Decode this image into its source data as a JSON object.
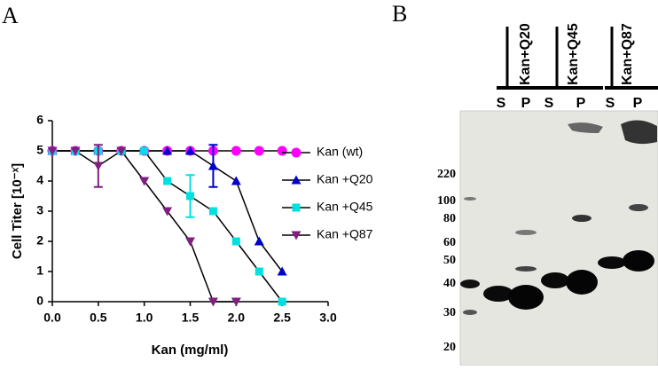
{
  "panel_labels": [
    "A",
    "B"
  ],
  "chart_data": {
    "type": "line",
    "x_label": "Kan (mg/ml)",
    "y_label": "Cell Titer [10⁻ˣ]",
    "xlim": [
      0,
      3
    ],
    "xticks": [
      {
        "value": 0,
        "label": "0.0"
      },
      {
        "value": 0.5,
        "label": "0.5"
      },
      {
        "value": 1,
        "label": "1.0"
      },
      {
        "value": 1.5,
        "label": "1.5"
      },
      {
        "value": 2,
        "label": "2.0"
      },
      {
        "value": 2.5,
        "label": "2.5"
      },
      {
        "value": 3,
        "label": "3.0"
      }
    ],
    "ylim": [
      0,
      6
    ],
    "yticks": [
      0,
      1,
      2,
      3,
      4,
      5,
      6
    ],
    "line_color": "#000000",
    "series": [
      {
        "name": "Kan (wt)",
        "color": "#ff00ff",
        "marker": "circle",
        "x": [
          0,
          0.25,
          0.5,
          0.75,
          1,
          1.25,
          1.5,
          1.75,
          2,
          2.25,
          2.5
        ],
        "values": [
          5,
          5,
          5,
          5,
          5,
          5,
          5,
          5,
          5,
          5,
          5
        ],
        "errors": [
          null,
          null,
          null,
          null,
          null,
          null,
          null,
          null,
          null,
          null,
          null
        ]
      },
      {
        "name": "Kan +Q20",
        "color": "#0000cc",
        "marker": "triangle-up",
        "x": [
          0,
          0.25,
          0.5,
          0.75,
          1,
          1.25,
          1.5,
          1.75,
          2,
          2.25,
          2.5
        ],
        "values": [
          5,
          5,
          5,
          5,
          5,
          5,
          5,
          4.5,
          4,
          2,
          1
        ],
        "errors": [
          null,
          null,
          null,
          null,
          null,
          null,
          null,
          0.7,
          null,
          null,
          null
        ]
      },
      {
        "name": "Kan +Q45",
        "color": "#00e0e0",
        "marker": "square",
        "x": [
          0,
          0.25,
          0.5,
          0.75,
          1,
          1.25,
          1.5,
          1.75,
          2,
          2.25,
          2.5
        ],
        "values": [
          5,
          5,
          5,
          5,
          5,
          4,
          3.5,
          3,
          2,
          1,
          0
        ],
        "errors": [
          null,
          null,
          null,
          null,
          null,
          null,
          0.7,
          null,
          null,
          null,
          null
        ]
      },
      {
        "name": "Kan +Q87",
        "color": "#7f1f7f",
        "marker": "triangle-down",
        "x": [
          0,
          0.25,
          0.5,
          0.75,
          1,
          1.25,
          1.5,
          1.75,
          2
        ],
        "values": [
          5,
          5,
          4.5,
          5,
          4,
          3,
          2,
          0,
          0
        ],
        "errors": [
          null,
          null,
          0.7,
          null,
          null,
          null,
          null,
          null,
          null
        ]
      }
    ]
  },
  "blot": {
    "ladder": [
      220,
      100,
      80,
      60,
      50,
      40,
      30,
      20
    ],
    "lanes": [
      {
        "name": "Kan+Q20",
        "fractions": [
          "S",
          "P"
        ]
      },
      {
        "name": "Kan+Q45",
        "fractions": [
          "S",
          "P"
        ]
      },
      {
        "name": "Kan+Q87",
        "fractions": [
          "S",
          "P"
        ]
      }
    ]
  }
}
